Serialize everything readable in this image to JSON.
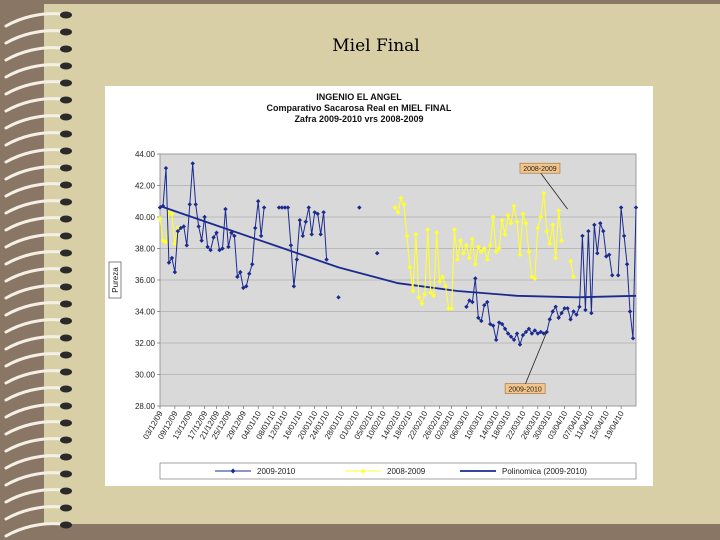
{
  "slide": {
    "title": "Miel Final"
  },
  "colors": {
    "background": "#8a7664",
    "paper": "#d9cfa6",
    "plot_bg": "#d9d9d9",
    "series_2009_2010": "#1b2a8f",
    "series_2008_2009": "#ffff33",
    "trend": "#1b2a8f",
    "callout": "#f3c58a"
  },
  "chart_data": {
    "type": "line",
    "title": [
      "INGENIO EL ANGEL",
      "Comparativo Sacarosa Real en MIEL FINAL",
      "Zafra 2009-2010  vrs 2008-2009"
    ],
    "ylabel": "Pureza",
    "ylim": [
      28,
      44
    ],
    "yticks": [
      "44.00",
      "42.00",
      "40.00",
      "38.00",
      "36.00",
      "34.00",
      "32.00",
      "30.00",
      "28.00"
    ],
    "ytick_values": [
      44,
      42,
      40,
      38,
      36,
      34,
      32,
      30,
      28
    ],
    "n_points": 161,
    "xlim": [
      0,
      160
    ],
    "xtick_labels": [
      "03/12/09",
      "09/12/09",
      "13/12/09",
      "17/12/09",
      "21/12/09",
      "25/12/09",
      "29/12/09",
      "04/01/10",
      "08/01/10",
      "12/01/10",
      "16/01/10",
      "20/01/10",
      "24/01/10",
      "28/01/10",
      "01/02/10",
      "05/02/10",
      "10/02/10",
      "14/02/10",
      "18/02/10",
      "22/02/10",
      "26/02/10",
      "02/03/10",
      "06/03/10",
      "10/03/10",
      "14/03/10",
      "18/03/10",
      "22/03/10",
      "26/03/10",
      "30/03/10",
      "03/04/10",
      "07/04/10",
      "11/04/10",
      "15/04/10",
      "19/04/10"
    ],
    "xtick_positions": [
      0,
      5,
      10,
      15,
      19,
      23,
      28,
      33,
      38,
      42,
      47,
      52,
      56,
      61,
      66,
      71,
      75,
      80,
      84,
      89,
      94,
      98,
      103,
      108,
      113,
      117,
      122,
      127,
      131,
      136,
      141,
      145,
      150,
      155
    ],
    "series": [
      {
        "name": "2009-2010",
        "style": "line-markers",
        "segments": [
          [
            [
              0,
              40.6
            ],
            [
              1,
              40.7
            ],
            [
              2,
              43.1
            ],
            [
              3,
              37.1
            ],
            [
              4,
              37.4
            ],
            [
              5,
              36.5
            ],
            [
              6,
              39.1
            ],
            [
              7,
              39.3
            ],
            [
              8,
              39.4
            ],
            [
              9,
              38.2
            ],
            [
              10,
              40.8
            ],
            [
              11,
              43.4
            ],
            [
              12,
              40.8
            ],
            [
              13,
              39.4
            ],
            [
              14,
              38.5
            ],
            [
              15,
              40.0
            ],
            [
              16,
              38.1
            ],
            [
              17,
              37.9
            ],
            [
              18,
              38.7
            ],
            [
              19,
              39.0
            ],
            [
              20,
              37.9
            ],
            [
              21,
              38.0
            ],
            [
              22,
              40.5
            ],
            [
              23,
              38.1
            ],
            [
              24,
              39.0
            ],
            [
              25,
              38.8
            ],
            [
              26,
              36.2
            ],
            [
              27,
              36.5
            ],
            [
              28,
              35.5
            ],
            [
              29,
              35.6
            ],
            [
              30,
              36.4
            ],
            [
              31,
              37.0
            ],
            [
              32,
              39.3
            ],
            [
              33,
              41.0
            ],
            [
              34,
              38.8
            ],
            [
              35,
              40.6
            ]
          ],
          [
            [
              40,
              40.6
            ],
            [
              41,
              40.6
            ],
            [
              42,
              40.6
            ],
            [
              43,
              40.6
            ],
            [
              44,
              38.2
            ],
            [
              45,
              35.6
            ],
            [
              46,
              37.3
            ],
            [
              47,
              39.8
            ],
            [
              48,
              38.8
            ],
            [
              49,
              39.7
            ],
            [
              50,
              40.6
            ],
            [
              51,
              38.9
            ],
            [
              52,
              40.3
            ],
            [
              53,
              40.2
            ],
            [
              54,
              38.9
            ],
            [
              55,
              40.3
            ],
            [
              56,
              37.3
            ]
          ],
          [
            [
              103,
              34.3
            ],
            [
              104,
              34.7
            ],
            [
              105,
              34.6
            ],
            [
              106,
              36.1
            ],
            [
              107,
              33.6
            ],
            [
              108,
              33.4
            ],
            [
              109,
              34.4
            ],
            [
              110,
              34.6
            ],
            [
              111,
              33.2
            ],
            [
              112,
              33.1
            ],
            [
              113,
              32.2
            ],
            [
              114,
              33.3
            ],
            [
              115,
              33.2
            ],
            [
              116,
              32.9
            ],
            [
              117,
              32.6
            ],
            [
              118,
              32.4
            ],
            [
              119,
              32.2
            ],
            [
              120,
              32.6
            ],
            [
              121,
              31.9
            ],
            [
              122,
              32.5
            ],
            [
              123,
              32.7
            ],
            [
              124,
              32.9
            ],
            [
              125,
              32.6
            ],
            [
              126,
              32.8
            ],
            [
              127,
              32.6
            ],
            [
              128,
              32.7
            ],
            [
              129,
              32.6
            ],
            [
              130,
              32.7
            ],
            [
              131,
              33.5
            ],
            [
              132,
              34.0
            ],
            [
              133,
              34.3
            ],
            [
              134,
              33.6
            ],
            [
              135,
              33.9
            ],
            [
              136,
              34.2
            ],
            [
              137,
              34.2
            ],
            [
              138,
              33.5
            ],
            [
              139,
              34.0
            ],
            [
              140,
              33.8
            ],
            [
              141,
              34.3
            ],
            [
              142,
              38.8
            ],
            [
              143,
              34.1
            ],
            [
              144,
              39.1
            ],
            [
              145,
              33.9
            ],
            [
              146,
              39.5
            ],
            [
              147,
              37.7
            ],
            [
              148,
              39.6
            ],
            [
              149,
              39.1
            ],
            [
              150,
              37.5
            ],
            [
              151,
              37.6
            ],
            [
              152,
              36.3
            ]
          ],
          [
            [
              154,
              36.3
            ],
            [
              155,
              40.6
            ],
            [
              156,
              38.8
            ],
            [
              157,
              37.0
            ],
            [
              158,
              34.0
            ],
            [
              159,
              32.3
            ],
            [
              160,
              40.6
            ]
          ]
        ],
        "points": [
          [
            60,
            34.9
          ],
          [
            67,
            40.6
          ],
          [
            73,
            37.7
          ]
        ]
      },
      {
        "name": "2008-2009",
        "style": "line-markers",
        "segments": [
          [
            [
              0,
              39.9
            ],
            [
              1,
              38.5
            ],
            [
              2,
              38.4
            ],
            [
              3,
              40.3
            ],
            [
              4,
              40.2
            ],
            [
              5,
              38.3
            ],
            [
              6,
              39.3
            ]
          ],
          [
            [
              79,
              40.6
            ],
            [
              80,
              40.3
            ],
            [
              81,
              41.2
            ],
            [
              82,
              40.8
            ],
            [
              83,
              38.8
            ],
            [
              84,
              36.8
            ],
            [
              85,
              35.3
            ],
            [
              86,
              38.9
            ],
            [
              87,
              34.9
            ],
            [
              88,
              34.5
            ],
            [
              89,
              35.1
            ],
            [
              90,
              39.2
            ],
            [
              91,
              35.2
            ],
            [
              92,
              35.0
            ],
            [
              93,
              39.0
            ],
            [
              94,
              35.9
            ],
            [
              95,
              36.2
            ],
            [
              96,
              35.6
            ],
            [
              97,
              34.2
            ],
            [
              98,
              34.2
            ],
            [
              99,
              39.2
            ],
            [
              100,
              37.3
            ],
            [
              101,
              38.5
            ],
            [
              102,
              37.7
            ],
            [
              103,
              38.2
            ],
            [
              104,
              37.4
            ],
            [
              105,
              38.6
            ],
            [
              106,
              37.0
            ],
            [
              107,
              38.1
            ],
            [
              108,
              37.8
            ],
            [
              109,
              38.0
            ],
            [
              110,
              37.3
            ],
            [
              111,
              38.2
            ],
            [
              112,
              40.0
            ],
            [
              113,
              37.8
            ],
            [
              114,
              38.0
            ],
            [
              115,
              39.8
            ],
            [
              116,
              38.9
            ],
            [
              117,
              40.1
            ],
            [
              118,
              39.6
            ],
            [
              119,
              40.7
            ],
            [
              120,
              39.7
            ],
            [
              121,
              37.6
            ],
            [
              122,
              40.2
            ],
            [
              123,
              39.6
            ],
            [
              124,
              37.8
            ],
            [
              125,
              36.2
            ],
            [
              126,
              36.1
            ],
            [
              127,
              39.3
            ],
            [
              128,
              40.0
            ],
            [
              129,
              41.5
            ],
            [
              130,
              39.1
            ],
            [
              131,
              38.3
            ],
            [
              132,
              39.5
            ],
            [
              133,
              37.4
            ],
            [
              134,
              40.4
            ],
            [
              135,
              38.5
            ]
          ],
          [
            [
              138,
              37.2
            ],
            [
              139,
              36.2
            ]
          ]
        ]
      },
      {
        "name": "Polinomica (2009-2010)",
        "style": "trend",
        "fit": [
          [
            0,
            40.7
          ],
          [
            20,
            39.4
          ],
          [
            40,
            38.1
          ],
          [
            60,
            36.8
          ],
          [
            80,
            35.8
          ],
          [
            100,
            35.3
          ],
          [
            120,
            35.0
          ],
          [
            140,
            34.9
          ],
          [
            160,
            35.0
          ]
        ]
      }
    ],
    "annotations": [
      {
        "text": "2008-2009",
        "x": 137,
        "y": 40.5,
        "style": "callout"
      },
      {
        "text": "2009-2010",
        "x": 130,
        "y": 32.7,
        "style": "callout"
      }
    ],
    "legend": {
      "position": "bottom",
      "entries": [
        "2009-2010",
        "2008-2009",
        "Polinomica (2009-2010)"
      ]
    }
  }
}
